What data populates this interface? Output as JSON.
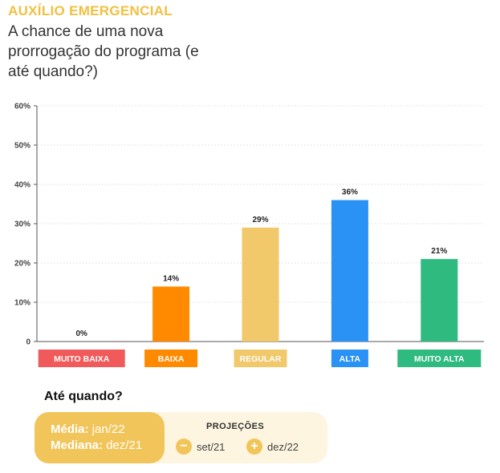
{
  "header": {
    "kicker": "AUXÍLIO EMERGENCIAL",
    "subtitle": "A chance de uma nova prorrogação do programa (e até quando?)"
  },
  "chart_data": {
    "type": "bar",
    "categories": [
      "MUITO BAIXA",
      "BAIXA",
      "REGULAR",
      "ALTA",
      "MUITO ALTA"
    ],
    "values": [
      0,
      14,
      29,
      36,
      21
    ],
    "value_labels": [
      "0%",
      "14%",
      "29%",
      "36%",
      "21%"
    ],
    "colors": [
      "#f05a5a",
      "#ff8a00",
      "#f1c86a",
      "#2a92f5",
      "#2fba7f"
    ],
    "ylim": [
      0,
      60
    ],
    "yticks": [
      0,
      10,
      20,
      30,
      40,
      50,
      60
    ],
    "ytick_labels": [
      "0",
      "10%",
      "20%",
      "30%",
      "40%",
      "50%",
      "60%"
    ],
    "grid": true
  },
  "until": {
    "title": "Até quando?",
    "media_label": "Média:",
    "media_value": "jan/22",
    "mediana_label": "Mediana:",
    "mediana_value": "dez/21",
    "projections_title": "PROJEÇÕES",
    "minus_symbol": "−",
    "minus_value": "set/21",
    "plus_symbol": "+",
    "plus_value": "dez/22"
  }
}
